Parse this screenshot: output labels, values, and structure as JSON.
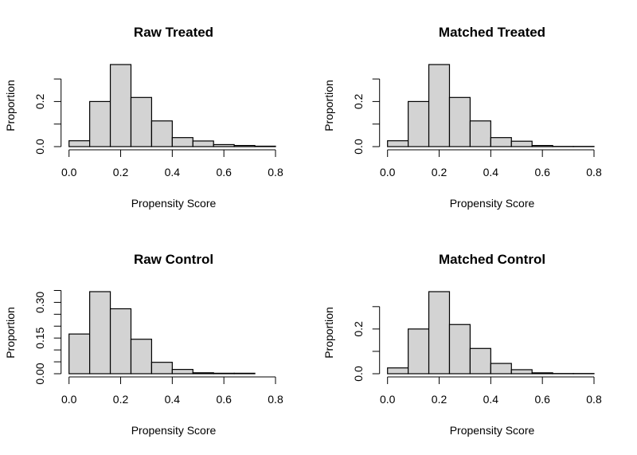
{
  "chart_data": [
    {
      "type": "bar",
      "title": "Raw Treated",
      "xlabel": "Propensity Score",
      "ylabel": "Proportion",
      "bin_edges": [
        0,
        0.08,
        0.16,
        0.24,
        0.32,
        0.4,
        0.48,
        0.56,
        0.64,
        0.72,
        0.8
      ],
      "values": [
        0.026,
        0.2,
        0.364,
        0.218,
        0.114,
        0.04,
        0.025,
        0.009,
        0.005,
        0.002
      ],
      "xticks": [
        0,
        0.2,
        0.4,
        0.6,
        0.8
      ],
      "xtick_labels": [
        "0.0",
        "0.2",
        "0.4",
        "0.6",
        "0.8"
      ],
      "yticks": [
        0,
        0.1,
        0.2,
        0.3
      ],
      "ytick_labels": [
        "0.0",
        "",
        "0.2",
        ""
      ],
      "ylim": [
        0,
        0.364
      ],
      "grid": false,
      "bar_color": "#d3d3d3"
    },
    {
      "type": "bar",
      "title": "Matched Treated",
      "xlabel": "Propensity Score",
      "ylabel": "Proportion",
      "bin_edges": [
        0,
        0.08,
        0.16,
        0.24,
        0.32,
        0.4,
        0.48,
        0.56,
        0.64,
        0.72,
        0.8
      ],
      "values": [
        0.026,
        0.2,
        0.364,
        0.218,
        0.114,
        0.04,
        0.024,
        0.005,
        0.001,
        0.001
      ],
      "xticks": [
        0,
        0.2,
        0.4,
        0.6,
        0.8
      ],
      "xtick_labels": [
        "0.0",
        "0.2",
        "0.4",
        "0.6",
        "0.8"
      ],
      "yticks": [
        0,
        0.1,
        0.2,
        0.3
      ],
      "ytick_labels": [
        "0.0",
        "",
        "0.2",
        ""
      ],
      "ylim": [
        0,
        0.364
      ],
      "grid": false,
      "bar_color": "#d3d3d3"
    },
    {
      "type": "bar",
      "title": "Raw Control",
      "xlabel": "Propensity Score",
      "ylabel": "Proportion",
      "bin_edges": [
        0,
        0.08,
        0.16,
        0.24,
        0.32,
        0.4,
        0.48,
        0.56,
        0.64,
        0.72,
        0.8
      ],
      "values": [
        0.167,
        0.345,
        0.273,
        0.145,
        0.048,
        0.018,
        0.004,
        0.002,
        0.002,
        0
      ],
      "xticks": [
        0,
        0.2,
        0.4,
        0.6,
        0.8
      ],
      "xtick_labels": [
        "0.0",
        "0.2",
        "0.4",
        "0.6",
        "0.8"
      ],
      "yticks": [
        0,
        0.05,
        0.1,
        0.15,
        0.2,
        0.25,
        0.3,
        0.35
      ],
      "ytick_labels": [
        "0.00",
        "",
        "",
        "0.15",
        "",
        "",
        "0.30",
        ""
      ],
      "ylim": [
        0,
        0.345
      ],
      "grid": false,
      "bar_color": "#d3d3d3"
    },
    {
      "type": "bar",
      "title": "Matched Control",
      "xlabel": "Propensity Score",
      "ylabel": "Proportion",
      "bin_edges": [
        0,
        0.08,
        0.16,
        0.24,
        0.32,
        0.4,
        0.48,
        0.56,
        0.64,
        0.72,
        0.8
      ],
      "values": [
        0.026,
        0.2,
        0.367,
        0.22,
        0.113,
        0.046,
        0.018,
        0.004,
        0.001,
        0.001
      ],
      "xticks": [
        0,
        0.2,
        0.4,
        0.6,
        0.8
      ],
      "xtick_labels": [
        "0.0",
        "0.2",
        "0.4",
        "0.6",
        "0.8"
      ],
      "yticks": [
        0,
        0.1,
        0.2,
        0.3
      ],
      "ytick_labels": [
        "0.0",
        "",
        "0.2",
        ""
      ],
      "ylim": [
        0,
        0.367
      ],
      "grid": false,
      "bar_color": "#d3d3d3"
    }
  ]
}
